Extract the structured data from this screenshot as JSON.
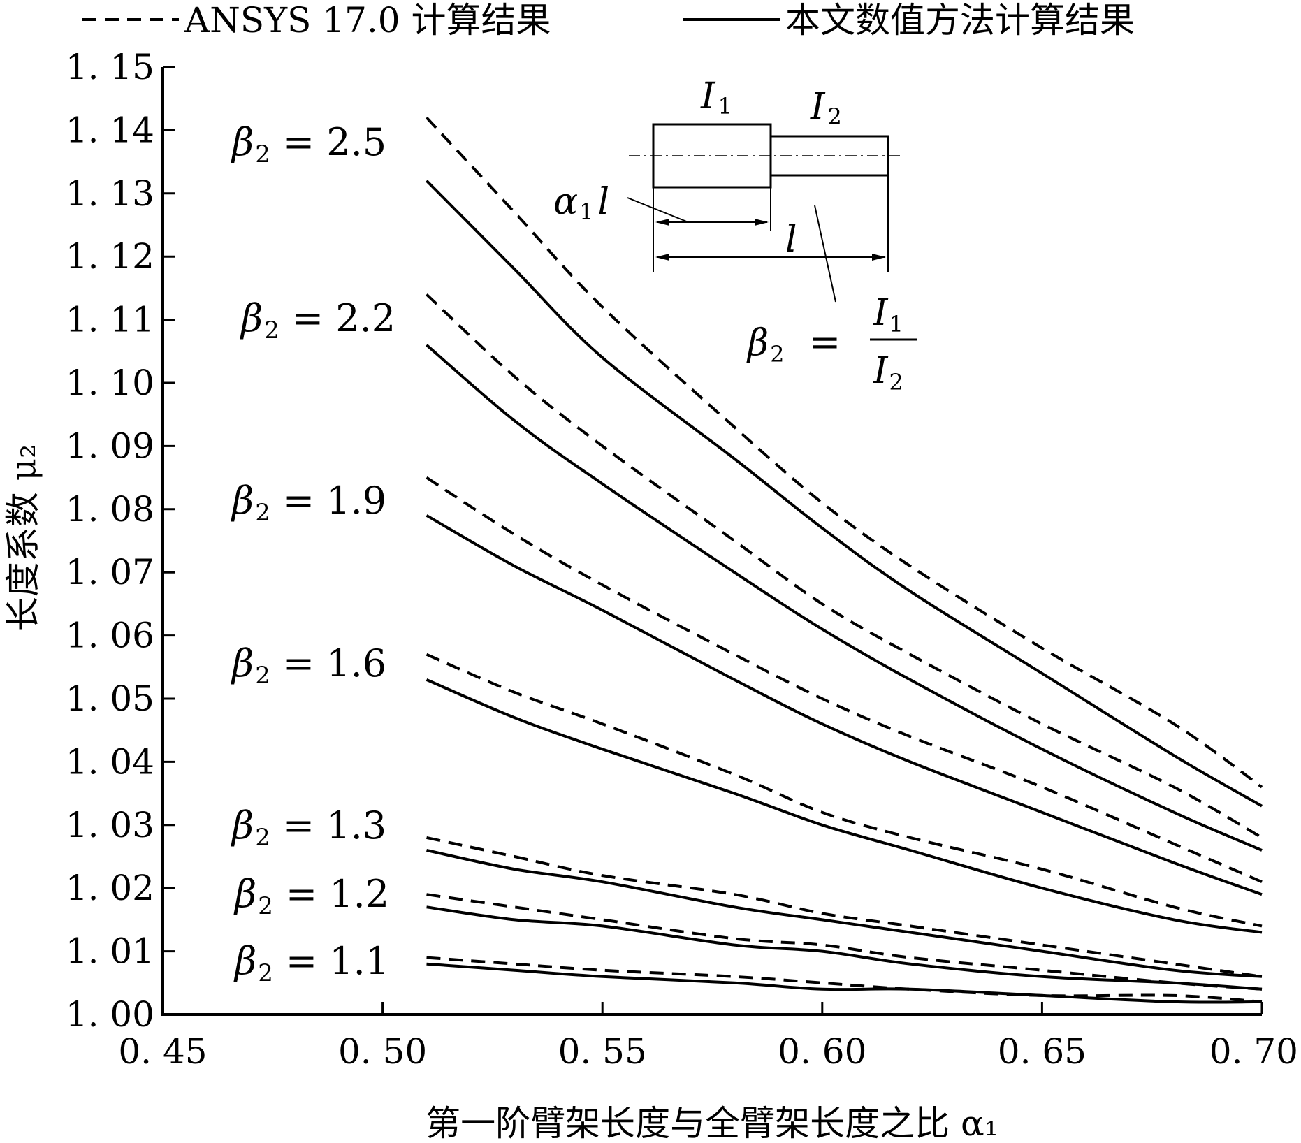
{
  "chart_data": {
    "type": "line",
    "title": "",
    "legend": {
      "placement": "top",
      "entries": [
        {
          "style": "dashed",
          "label": "ANSYS 17.0 计算结果"
        },
        {
          "style": "solid",
          "label": "本文数值方法计算结果"
        }
      ]
    },
    "xlabel": "第一阶臂架长度与全臂架长度之比 α₁",
    "ylabel": "长度系数 μ₂",
    "xlim": [
      0.45,
      0.7
    ],
    "ylim": [
      1.0,
      1.15
    ],
    "xticks": [
      "0. 45",
      "0. 50",
      "0. 55",
      "0. 60",
      "0. 65",
      "0. 70"
    ],
    "yticks": [
      "1. 00",
      "1. 01",
      "1. 02",
      "1. 03",
      "1. 04",
      "1. 05",
      "1. 06",
      "1. 07",
      "1. 08",
      "1. 09",
      "1. 10",
      "1. 11",
      "1. 12",
      "1. 13",
      "1. 14",
      "1. 15"
    ],
    "grid": false,
    "series": [
      {
        "label": "β₂ = 2.5",
        "ansys": [
          [
            0.51,
            1.142
          ],
          [
            0.53,
            1.127
          ],
          [
            0.55,
            1.112
          ],
          [
            0.58,
            1.093
          ],
          [
            0.6,
            1.081
          ],
          [
            0.62,
            1.071
          ],
          [
            0.65,
            1.058
          ],
          [
            0.68,
            1.046
          ],
          [
            0.7,
            1.036
          ]
        ],
        "numerical": [
          [
            0.51,
            1.132
          ],
          [
            0.53,
            1.118
          ],
          [
            0.55,
            1.104
          ],
          [
            0.58,
            1.088
          ],
          [
            0.6,
            1.077
          ],
          [
            0.62,
            1.067
          ],
          [
            0.65,
            1.054
          ],
          [
            0.68,
            1.041
          ],
          [
            0.7,
            1.033
          ]
        ]
      },
      {
        "label": "β₂ = 2.2",
        "ansys": [
          [
            0.51,
            1.114
          ],
          [
            0.53,
            1.101
          ],
          [
            0.55,
            1.09
          ],
          [
            0.58,
            1.075
          ],
          [
            0.6,
            1.065
          ],
          [
            0.62,
            1.057
          ],
          [
            0.65,
            1.046
          ],
          [
            0.68,
            1.036
          ],
          [
            0.7,
            1.028
          ]
        ],
        "numerical": [
          [
            0.51,
            1.106
          ],
          [
            0.53,
            1.094
          ],
          [
            0.55,
            1.084
          ],
          [
            0.58,
            1.07
          ],
          [
            0.6,
            1.061
          ],
          [
            0.62,
            1.053
          ],
          [
            0.65,
            1.042
          ],
          [
            0.68,
            1.032
          ],
          [
            0.7,
            1.026
          ]
        ]
      },
      {
        "label": "β₂ = 1.9",
        "ansys": [
          [
            0.51,
            1.085
          ],
          [
            0.53,
            1.076
          ],
          [
            0.55,
            1.068
          ],
          [
            0.58,
            1.057
          ],
          [
            0.6,
            1.05
          ],
          [
            0.62,
            1.044
          ],
          [
            0.65,
            1.036
          ],
          [
            0.68,
            1.027
          ],
          [
            0.7,
            1.021
          ]
        ],
        "numerical": [
          [
            0.51,
            1.079
          ],
          [
            0.53,
            1.071
          ],
          [
            0.55,
            1.064
          ],
          [
            0.58,
            1.053
          ],
          [
            0.6,
            1.046
          ],
          [
            0.62,
            1.04
          ],
          [
            0.65,
            1.032
          ],
          [
            0.68,
            1.024
          ],
          [
            0.7,
            1.019
          ]
        ]
      },
      {
        "label": "β₂ = 1.6",
        "ansys": [
          [
            0.51,
            1.057
          ],
          [
            0.53,
            1.051
          ],
          [
            0.55,
            1.046
          ],
          [
            0.58,
            1.038
          ],
          [
            0.6,
            1.032
          ],
          [
            0.62,
            1.028
          ],
          [
            0.65,
            1.023
          ],
          [
            0.68,
            1.017
          ],
          [
            0.7,
            1.014
          ]
        ],
        "numerical": [
          [
            0.51,
            1.053
          ],
          [
            0.53,
            1.047
          ],
          [
            0.55,
            1.042
          ],
          [
            0.58,
            1.035
          ],
          [
            0.6,
            1.03
          ],
          [
            0.62,
            1.026
          ],
          [
            0.65,
            1.02
          ],
          [
            0.68,
            1.015
          ],
          [
            0.7,
            1.013
          ]
        ]
      },
      {
        "label": "β₂ = 1.3",
        "ansys": [
          [
            0.51,
            1.028
          ],
          [
            0.53,
            1.025
          ],
          [
            0.55,
            1.022
          ],
          [
            0.58,
            1.019
          ],
          [
            0.6,
            1.016
          ],
          [
            0.62,
            1.014
          ],
          [
            0.65,
            1.011
          ],
          [
            0.68,
            1.008
          ],
          [
            0.7,
            1.006
          ]
        ],
        "numerical": [
          [
            0.51,
            1.026
          ],
          [
            0.53,
            1.023
          ],
          [
            0.55,
            1.021
          ],
          [
            0.58,
            1.017
          ],
          [
            0.6,
            1.015
          ],
          [
            0.62,
            1.013
          ],
          [
            0.65,
            1.01
          ],
          [
            0.68,
            1.007
          ],
          [
            0.7,
            1.006
          ]
        ]
      },
      {
        "label": "β₂ = 1.2",
        "ansys": [
          [
            0.51,
            1.019
          ],
          [
            0.53,
            1.017
          ],
          [
            0.55,
            1.015
          ],
          [
            0.58,
            1.012
          ],
          [
            0.6,
            1.011
          ],
          [
            0.62,
            1.009
          ],
          [
            0.65,
            1.007
          ],
          [
            0.68,
            1.005
          ],
          [
            0.7,
            1.004
          ]
        ],
        "numerical": [
          [
            0.51,
            1.017
          ],
          [
            0.53,
            1.015
          ],
          [
            0.55,
            1.014
          ],
          [
            0.58,
            1.011
          ],
          [
            0.6,
            1.01
          ],
          [
            0.62,
            1.008
          ],
          [
            0.65,
            1.006
          ],
          [
            0.68,
            1.005
          ],
          [
            0.7,
            1.004
          ]
        ]
      },
      {
        "label": "β₂ = 1.1",
        "ansys": [
          [
            0.51,
            1.009
          ],
          [
            0.53,
            1.008
          ],
          [
            0.55,
            1.007
          ],
          [
            0.58,
            1.006
          ],
          [
            0.6,
            1.005
          ],
          [
            0.62,
            1.004
          ],
          [
            0.65,
            1.003
          ],
          [
            0.68,
            1.003
          ],
          [
            0.7,
            1.002
          ]
        ],
        "numerical": [
          [
            0.51,
            1.008
          ],
          [
            0.53,
            1.007
          ],
          [
            0.55,
            1.006
          ],
          [
            0.58,
            1.005
          ],
          [
            0.6,
            1.004
          ],
          [
            0.62,
            1.004
          ],
          [
            0.65,
            1.003
          ],
          [
            0.68,
            1.002
          ],
          [
            0.7,
            1.002
          ]
        ]
      }
    ],
    "inset_diagram": {
      "I1": "I",
      "I1_sub": "1",
      "I2": "I",
      "I2_sub": "2",
      "alpha_l": "α",
      "alpha_sub": "1",
      "alpha_l_suffix": "l",
      "l": "l",
      "beta": "β",
      "beta_sub": "2",
      "equals": "=",
      "fraction_num": "I",
      "fraction_num_sub": "1",
      "fraction_den": "I",
      "fraction_den_sub": "2"
    }
  },
  "colors": {
    "line": "#000000",
    "background": "#ffffff"
  }
}
